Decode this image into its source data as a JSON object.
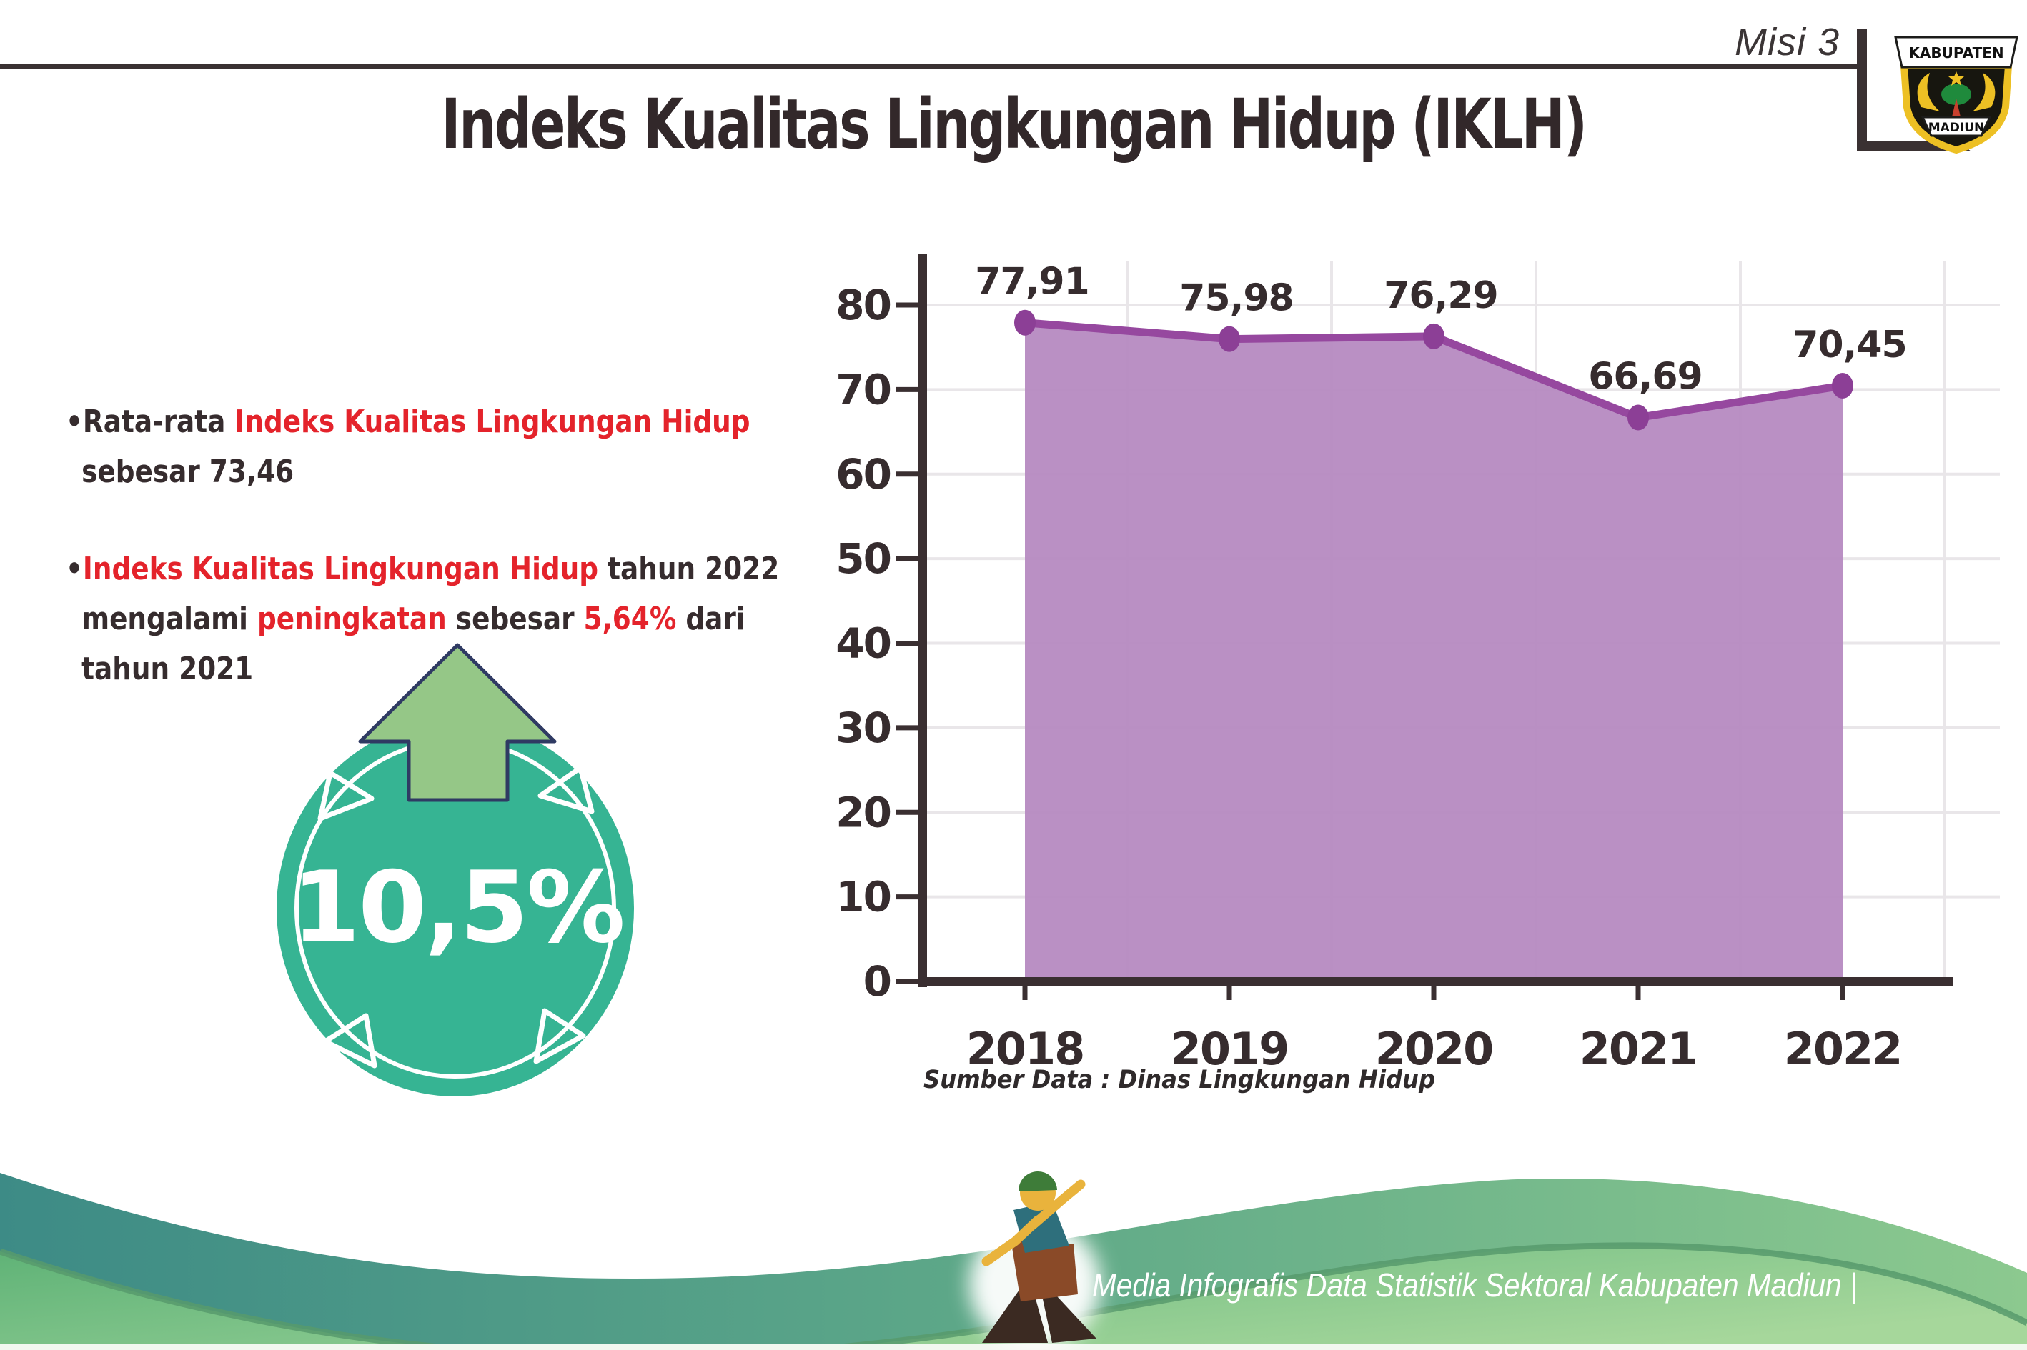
{
  "header": {
    "misi_label": "Misi 3",
    "logo": {
      "top_text": "KABUPATEN",
      "bottom_text": "MADIUN"
    }
  },
  "title": "Indeks Kualitas Lingkungan Hidup (IKLH)",
  "bullets": [
    {
      "lines": [
        [
          {
            "text": "•Rata-rata ",
            "color": "dark"
          },
          {
            "text": "Indeks Kualitas Lingkungan Hidup",
            "color": "red"
          }
        ],
        [
          {
            "text": "sebesar 73,46",
            "color": "dark"
          }
        ]
      ]
    },
    {
      "lines": [
        [
          {
            "text": "•",
            "color": "dark"
          },
          {
            "text": "Indeks Kualitas Lingkungan Hidup",
            "color": "red"
          },
          {
            "text": " tahun 2022",
            "color": "dark"
          }
        ],
        [
          {
            "text": "mengalami ",
            "color": "dark"
          },
          {
            "text": "peningkatan",
            "color": "red"
          },
          {
            "text": " sebesar ",
            "color": "dark"
          },
          {
            "text": "5,64%",
            "color": "red"
          },
          {
            "text": " dari",
            "color": "dark"
          }
        ],
        [
          {
            "text": "tahun 2021",
            "color": "dark"
          }
        ]
      ]
    }
  ],
  "badge": {
    "value": "10,5%"
  },
  "chart_data": {
    "type": "area",
    "title": "",
    "xlabel": "",
    "ylabel": "",
    "categories": [
      "2018",
      "2019",
      "2020",
      "2021",
      "2022"
    ],
    "values": [
      77.91,
      75.98,
      76.29,
      66.69,
      70.45
    ],
    "value_labels": [
      "77,91",
      "75,98",
      "76,29",
      "66,69",
      "70,45"
    ],
    "ylim": [
      0,
      80
    ],
    "ytick_step": 10,
    "grid": true,
    "legend": "none",
    "colors": {
      "area": "#b588bf",
      "line": "#96489f",
      "marker": "#8c3f96",
      "grid": "#e9e6e9",
      "axis": "#3a2f31",
      "label": "#362c2e"
    }
  },
  "source_note": "Sumber Data : Dinas Lingkungan Hidup",
  "footer": {
    "caption": "Media Infografis Data Statistik Sektoral Kabupaten Madiun |"
  },
  "colors": {
    "accent_red": "#e4232b",
    "text_dark": "#362c2e",
    "badge_teal": "#36b493",
    "arrow_green": "#95c787",
    "arrow_outline_navy": "#2f3a63",
    "footer_teal": "#3f8d88",
    "footer_green": "#7fc68a"
  }
}
